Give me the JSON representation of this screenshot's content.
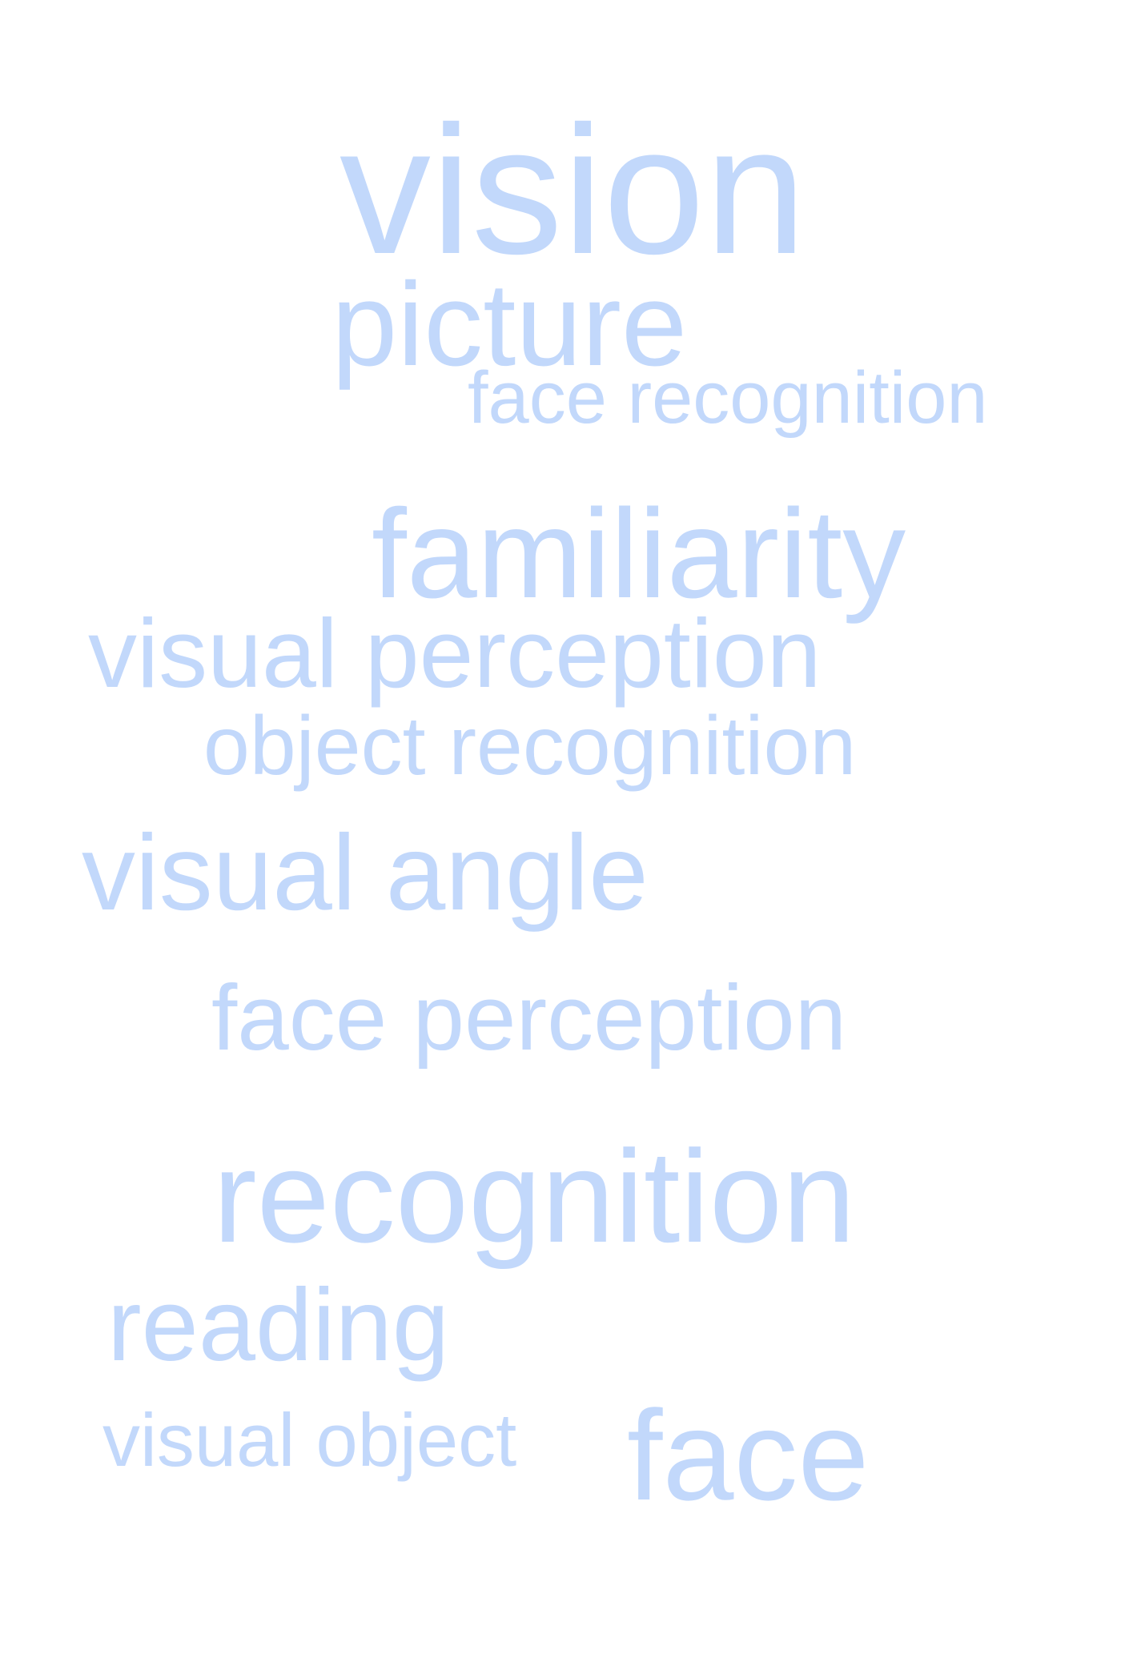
{
  "word_color": "#c2d8fb",
  "background_color": "#ffffff",
  "words": [
    {
      "id": "vision",
      "text": "vision"
    },
    {
      "id": "picture",
      "text": "picture"
    },
    {
      "id": "face_recognition",
      "text": "face recognition"
    },
    {
      "id": "familiarity",
      "text": "familiarity"
    },
    {
      "id": "visual_perception",
      "text": "visual perception"
    },
    {
      "id": "object_recognition",
      "text": "object recognition"
    },
    {
      "id": "visual_angle",
      "text": "visual angle"
    },
    {
      "id": "face_perception",
      "text": "face perception"
    },
    {
      "id": "recognition",
      "text": "recognition"
    },
    {
      "id": "reading",
      "text": "reading"
    },
    {
      "id": "visual_object",
      "text": "visual object"
    },
    {
      "id": "face",
      "text": "face"
    }
  ]
}
